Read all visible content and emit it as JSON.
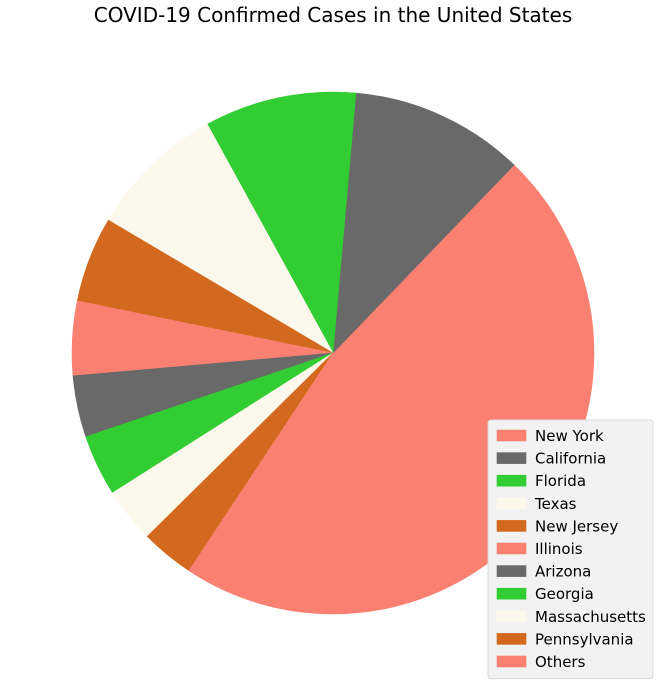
{
  "chart_data": {
    "type": "pie",
    "title": "COVID-19 Confirmed Cases in the United States",
    "start_angle": 0,
    "direction": "counterclockwise",
    "legend_position": "lower-right",
    "slices": [
      {
        "label": "New York",
        "percent": 12.8,
        "color": "#FA8072"
      },
      {
        "label": "California",
        "percent": 10.8,
        "color": "#696969"
      },
      {
        "label": "Florida",
        "percent": 9.4,
        "color": "#32CD32"
      },
      {
        "label": "Texas",
        "percent": 8.5,
        "color": "#FDF8EC"
      },
      {
        "label": "New Jersey",
        "percent": 5.3,
        "color": "#D2691E"
      },
      {
        "label": "Illinois",
        "percent": 4.6,
        "color": "#FA8072"
      },
      {
        "label": "Arizona",
        "percent": 3.8,
        "color": "#696969"
      },
      {
        "label": "Georgia",
        "percent": 3.8,
        "color": "#32CD32"
      },
      {
        "label": "Massachusetts",
        "percent": 3.4,
        "color": "#FDF8EC"
      },
      {
        "label": "Pennsylvania",
        "percent": 3.3,
        "color": "#D2691E"
      },
      {
        "label": "Others",
        "percent": 34.3,
        "color": "#FA8072"
      }
    ]
  }
}
